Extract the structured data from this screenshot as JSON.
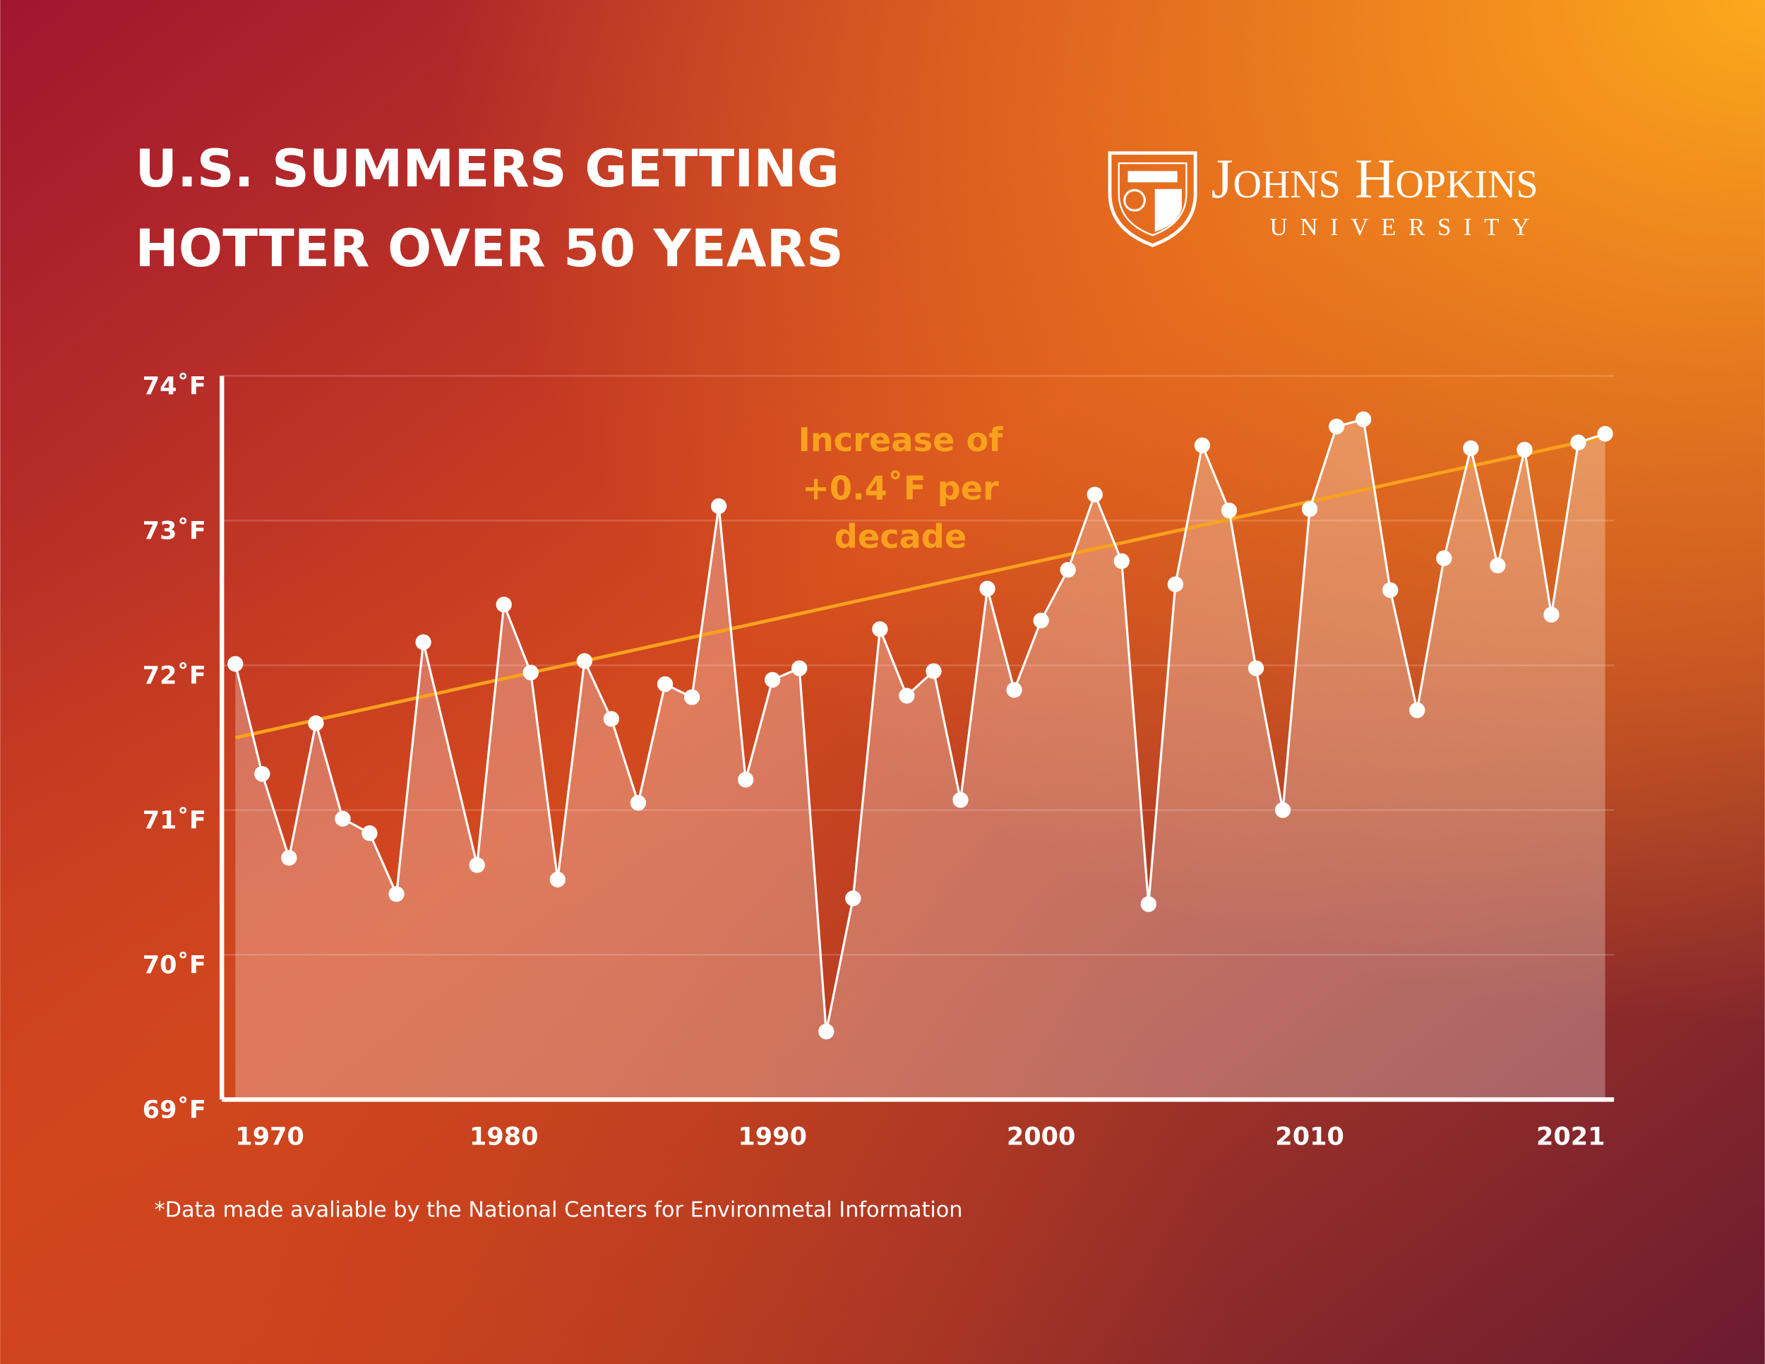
{
  "chart_data": {
    "type": "line",
    "title_lines": [
      "U.S. SUMMERS GETTING",
      "HOTTER OVER 50 YEARS"
    ],
    "logo": {
      "name": "Johns Hopkins",
      "sub": "UNIVERSITY"
    },
    "annotation_lines": [
      "Increase of",
      "+0.4˚F per",
      "decade"
    ],
    "footnote": "*Data made avaliable by the National Centers for Environmetal Information",
    "x": [
      1970,
      1971,
      1972,
      1973,
      1974,
      1975,
      1976,
      1977,
      1979,
      1980,
      1981,
      1982,
      1983,
      1984,
      1985,
      1986,
      1987,
      1988,
      1989,
      1990,
      1991,
      1992,
      1993,
      1994,
      1995,
      1996,
      1997,
      1998,
      1999,
      2000,
      2001,
      2002,
      2003,
      2004,
      2005,
      2006,
      2007,
      2008,
      2009,
      2010,
      2011,
      2012,
      2013,
      2014,
      2015,
      2016,
      2017,
      2018,
      2019,
      2020,
      2021
    ],
    "series": [
      {
        "color": "#ffffff",
        "values": [
          72.01,
          71.25,
          70.67,
          71.6,
          70.94,
          70.84,
          70.42,
          72.16,
          70.62,
          72.42,
          71.95,
          70.52,
          72.03,
          71.63,
          71.05,
          71.87,
          71.78,
          73.1,
          71.21,
          71.9,
          71.98,
          69.47,
          70.39,
          72.25,
          71.79,
          71.96,
          71.07,
          72.53,
          71.83,
          72.31,
          72.66,
          73.18,
          72.72,
          70.35,
          72.56,
          73.52,
          73.07,
          71.98,
          71.0,
          73.08,
          73.65,
          73.7,
          72.52,
          71.69,
          72.74,
          73.5,
          72.69,
          73.49,
          72.35,
          73.54,
          73.6
        ]
      }
    ],
    "trend": {
      "color": "#f9a11d",
      "x": [
        1970,
        2021
      ],
      "values": [
        71.5,
        73.58
      ]
    },
    "xlim": [
      1969.5,
      2021.33
    ],
    "xticks": [
      1970,
      1980,
      1990,
      2000,
      2010,
      2021
    ],
    "ylim": [
      69,
      74
    ],
    "yticks": [
      {
        "value": 69,
        "label": "69˚F"
      },
      {
        "value": 70,
        "label": "70˚F"
      },
      {
        "value": 71,
        "label": "71˚F"
      },
      {
        "value": 72,
        "label": "72˚F"
      },
      {
        "value": 73,
        "label": "73˚F"
      },
      {
        "value": 74,
        "label": "74˚F"
      }
    ],
    "grid": true
  }
}
